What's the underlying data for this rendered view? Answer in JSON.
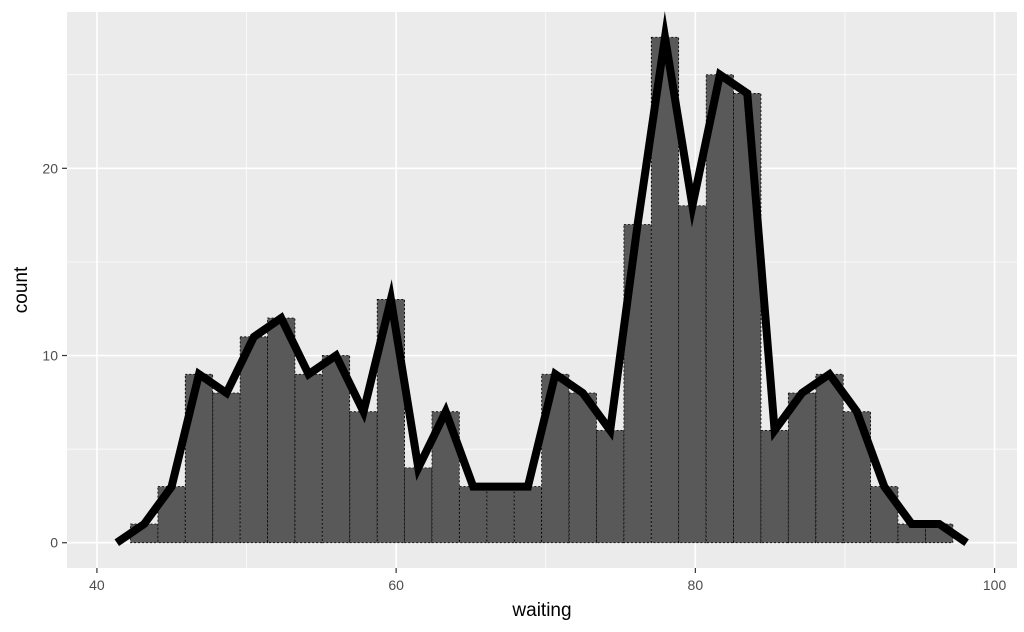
{
  "chart_data": {
    "type": "bar",
    "xlabel": "waiting",
    "ylabel": "count",
    "xlim": [
      38,
      101.5
    ],
    "ylim": [
      -1.35,
      28.35
    ],
    "x_ticks": [
      40,
      60,
      80,
      100
    ],
    "x_tick_labels": [
      "40",
      "60",
      "80",
      "100"
    ],
    "y_ticks": [
      0,
      10,
      20
    ],
    "y_tick_labels": [
      "0",
      "10",
      "20"
    ],
    "grid": true,
    "bin_width": 1.83,
    "bins": [
      {
        "x": 43.16,
        "count": 1
      },
      {
        "x": 44.99,
        "count": 3
      },
      {
        "x": 46.82,
        "count": 9
      },
      {
        "x": 48.66,
        "count": 8
      },
      {
        "x": 50.49,
        "count": 11
      },
      {
        "x": 52.32,
        "count": 12
      },
      {
        "x": 54.15,
        "count": 9
      },
      {
        "x": 55.98,
        "count": 10
      },
      {
        "x": 57.82,
        "count": 7
      },
      {
        "x": 59.65,
        "count": 13
      },
      {
        "x": 61.48,
        "count": 4
      },
      {
        "x": 63.31,
        "count": 7
      },
      {
        "x": 65.15,
        "count": 3
      },
      {
        "x": 66.98,
        "count": 3
      },
      {
        "x": 68.81,
        "count": 3
      },
      {
        "x": 70.64,
        "count": 9
      },
      {
        "x": 72.48,
        "count": 8
      },
      {
        "x": 74.31,
        "count": 6
      },
      {
        "x": 76.14,
        "count": 17
      },
      {
        "x": 77.97,
        "count": 27
      },
      {
        "x": 79.8,
        "count": 18
      },
      {
        "x": 81.64,
        "count": 25
      },
      {
        "x": 83.47,
        "count": 24
      },
      {
        "x": 85.3,
        "count": 6
      },
      {
        "x": 87.13,
        "count": 8
      },
      {
        "x": 88.97,
        "count": 9
      },
      {
        "x": 90.8,
        "count": 7
      },
      {
        "x": 92.63,
        "count": 3
      },
      {
        "x": 94.46,
        "count": 1
      },
      {
        "x": 96.3,
        "count": 1
      }
    ],
    "freqpoly": [
      {
        "x": 41.33,
        "count": 0
      },
      {
        "x": 43.16,
        "count": 1
      },
      {
        "x": 44.99,
        "count": 3
      },
      {
        "x": 46.82,
        "count": 9
      },
      {
        "x": 48.66,
        "count": 8
      },
      {
        "x": 50.49,
        "count": 11
      },
      {
        "x": 52.32,
        "count": 12
      },
      {
        "x": 54.15,
        "count": 9
      },
      {
        "x": 55.98,
        "count": 10
      },
      {
        "x": 57.82,
        "count": 7
      },
      {
        "x": 59.65,
        "count": 13
      },
      {
        "x": 61.48,
        "count": 4
      },
      {
        "x": 63.31,
        "count": 7
      },
      {
        "x": 65.15,
        "count": 3
      },
      {
        "x": 66.98,
        "count": 3
      },
      {
        "x": 68.81,
        "count": 3
      },
      {
        "x": 70.64,
        "count": 9
      },
      {
        "x": 72.48,
        "count": 8
      },
      {
        "x": 74.31,
        "count": 6
      },
      {
        "x": 76.14,
        "count": 17
      },
      {
        "x": 77.97,
        "count": 27
      },
      {
        "x": 79.8,
        "count": 18
      },
      {
        "x": 81.64,
        "count": 25
      },
      {
        "x": 83.47,
        "count": 24
      },
      {
        "x": 85.3,
        "count": 6
      },
      {
        "x": 87.13,
        "count": 8
      },
      {
        "x": 88.97,
        "count": 9
      },
      {
        "x": 90.8,
        "count": 7
      },
      {
        "x": 92.63,
        "count": 3
      },
      {
        "x": 94.46,
        "count": 1
      },
      {
        "x": 96.3,
        "count": 1
      },
      {
        "x": 98.13,
        "count": 0
      }
    ],
    "colors": {
      "panel_background": "#ebebeb",
      "grid_major": "#ffffff",
      "bar_fill": "#595959",
      "bar_outline": "#000000",
      "line": "#000000"
    }
  }
}
